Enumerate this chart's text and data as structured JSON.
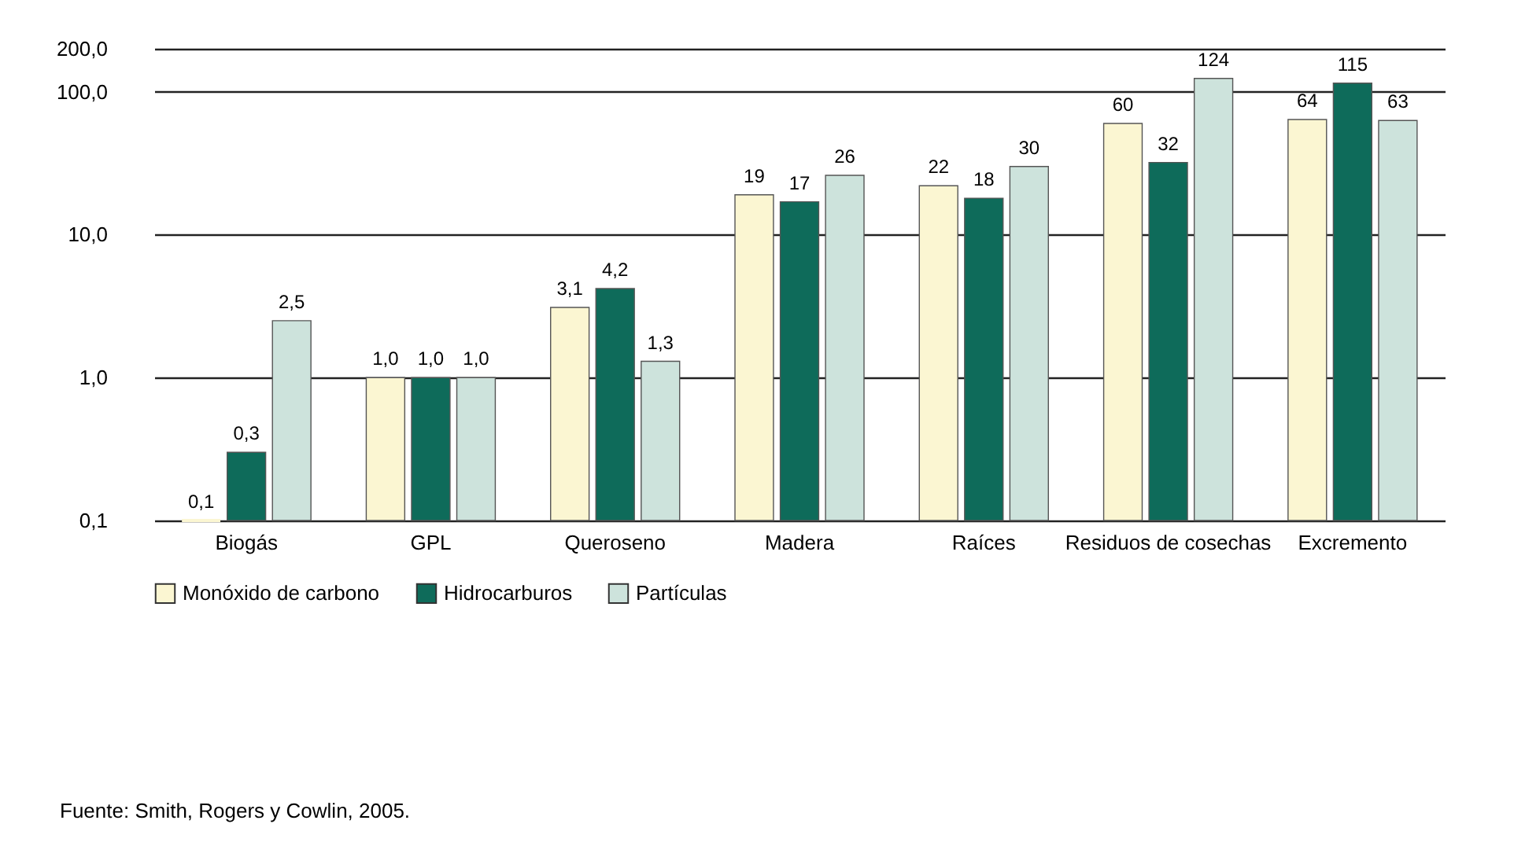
{
  "chart_data": {
    "type": "bar",
    "log": "y",
    "grid": "y",
    "legend": "bottom",
    "categories": [
      "Biogás",
      "GPL",
      "Queroseno",
      "Madera",
      "Raíces",
      "Residuos de cosechas",
      "Excremento"
    ],
    "series": [
      {
        "name": "Monóxido de carbono",
        "color": "#fbf6d2",
        "values": [
          0.1,
          1.0,
          3.1,
          19,
          22,
          60,
          64
        ],
        "value_labels": [
          "0,1",
          "1,0",
          "3,1",
          "19",
          "22",
          "60",
          "64"
        ]
      },
      {
        "name": "Hidrocarburos",
        "color": "#0e6b5a",
        "values": [
          0.3,
          1.0,
          4.2,
          17,
          18,
          32,
          115
        ],
        "value_labels": [
          "0,3",
          "1,0",
          "4,2",
          "17",
          "18",
          "32",
          "115"
        ]
      },
      {
        "name": "Partículas",
        "color": "#cde3dc",
        "values": [
          2.5,
          1.0,
          1.3,
          26,
          30,
          124,
          63
        ],
        "value_labels": [
          "2,5",
          "1,0",
          "1,3",
          "26",
          "30",
          "124",
          "63"
        ]
      }
    ],
    "ylim": [
      0.1,
      200
    ],
    "yticks": [
      {
        "value": 0.1,
        "label": "0,1"
      },
      {
        "value": 1,
        "label": "1,0"
      },
      {
        "value": 10,
        "label": "10,0"
      },
      {
        "value": 100,
        "label": "100,0"
      },
      {
        "value": 200,
        "label": "200,0"
      }
    ],
    "annotations": [
      "Fuente: Smith, Rogers y Cowlin, 2005."
    ]
  }
}
